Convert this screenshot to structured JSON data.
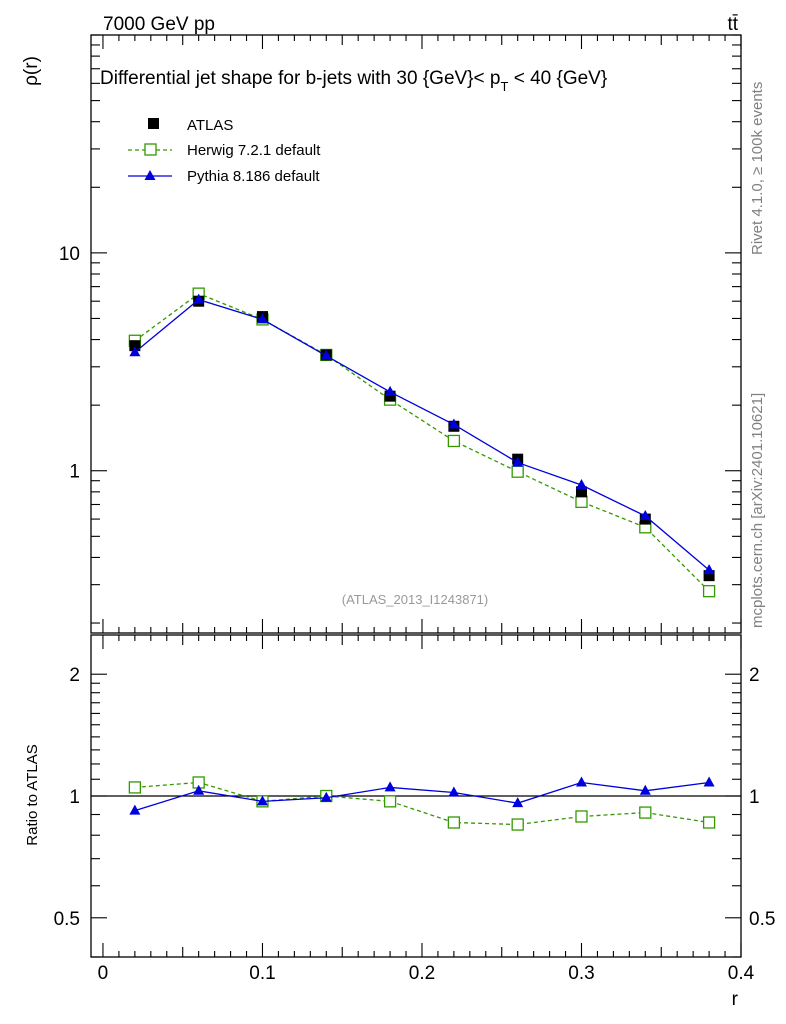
{
  "header": {
    "left": "7000 GeV pp",
    "right": "tt̄"
  },
  "side_labels": {
    "upper": "Rivet 4.1.0, ≥ 100k events",
    "lower": "mcplots.cern.ch [arXiv:2401.10621]"
  },
  "watermark": "(ATLAS_2013_I1243871)",
  "colors": {
    "data": "#000000",
    "herwig": "#339900",
    "pythia": "#0000dd"
  },
  "chart_data": [
    {
      "type": "line",
      "panel": "main",
      "title": "Differential jet shape for b-jets with 30 {GeV}< p_T < 40 {GeV}",
      "title_parts": {
        "pre": "Differential jet shape for b-jets with 30 {GeV}< p",
        "sub": "T",
        "post": " < 40 {GeV}"
      },
      "xlabel": "r",
      "ylabel": "ρ(r)",
      "yscale": "log",
      "xlim": [
        -0.0075,
        0.4
      ],
      "ylim": [
        0.18,
        100
      ],
      "xticks": [
        0,
        0.1,
        0.2,
        0.3,
        0.4
      ],
      "xtick_labels": [
        "0",
        "0.1",
        "0.2",
        "0.3",
        "0.4"
      ],
      "yticks": [
        1,
        10
      ],
      "ytick_labels": [
        "1",
        "10"
      ],
      "legend_position": "top-left",
      "x": [
        0.02,
        0.06,
        0.1,
        0.14,
        0.18,
        0.22,
        0.26,
        0.3,
        0.34,
        0.38
      ],
      "series": [
        {
          "name": "ATLAS",
          "marker": "square-filled",
          "line": "none",
          "color": "#000000",
          "values": [
            3.75,
            6.0,
            5.1,
            3.4,
            2.2,
            1.6,
            1.13,
            0.8,
            0.6,
            0.33
          ]
        },
        {
          "name": "Herwig 7.2.1 default",
          "marker": "square-open",
          "line": "dashed",
          "color": "#339900",
          "values": [
            3.95,
            6.5,
            4.95,
            3.4,
            2.12,
            1.37,
            0.99,
            0.72,
            0.55,
            0.28
          ]
        },
        {
          "name": "Pythia 8.186 default",
          "marker": "triangle-filled",
          "line": "solid",
          "color": "#0000dd",
          "values": [
            3.5,
            6.1,
            4.95,
            3.37,
            2.3,
            1.63,
            1.09,
            0.86,
            0.62,
            0.35
          ]
        }
      ]
    },
    {
      "type": "line",
      "panel": "ratio",
      "ylabel": "Ratio to ATLAS",
      "yscale": "log",
      "xlim": [
        -0.0075,
        0.4
      ],
      "ylim": [
        0.4,
        2.5
      ],
      "reference": 1,
      "yticks": [
        0.5,
        1,
        2
      ],
      "ytick_labels": [
        "0.5",
        "1",
        "2"
      ],
      "x": [
        0.02,
        0.06,
        0.1,
        0.14,
        0.18,
        0.22,
        0.26,
        0.3,
        0.34,
        0.38
      ],
      "series": [
        {
          "name": "Herwig 7.2.1 default",
          "marker": "square-open",
          "line": "dashed",
          "color": "#339900",
          "values": [
            1.05,
            1.08,
            0.97,
            1.0,
            0.97,
            0.86,
            0.85,
            0.89,
            0.91,
            0.86
          ]
        },
        {
          "name": "Pythia 8.186 default",
          "marker": "triangle-filled",
          "line": "solid",
          "color": "#0000dd",
          "values": [
            0.92,
            1.03,
            0.97,
            0.99,
            1.05,
            1.02,
            0.96,
            1.08,
            1.03,
            1.08
          ]
        }
      ]
    }
  ]
}
